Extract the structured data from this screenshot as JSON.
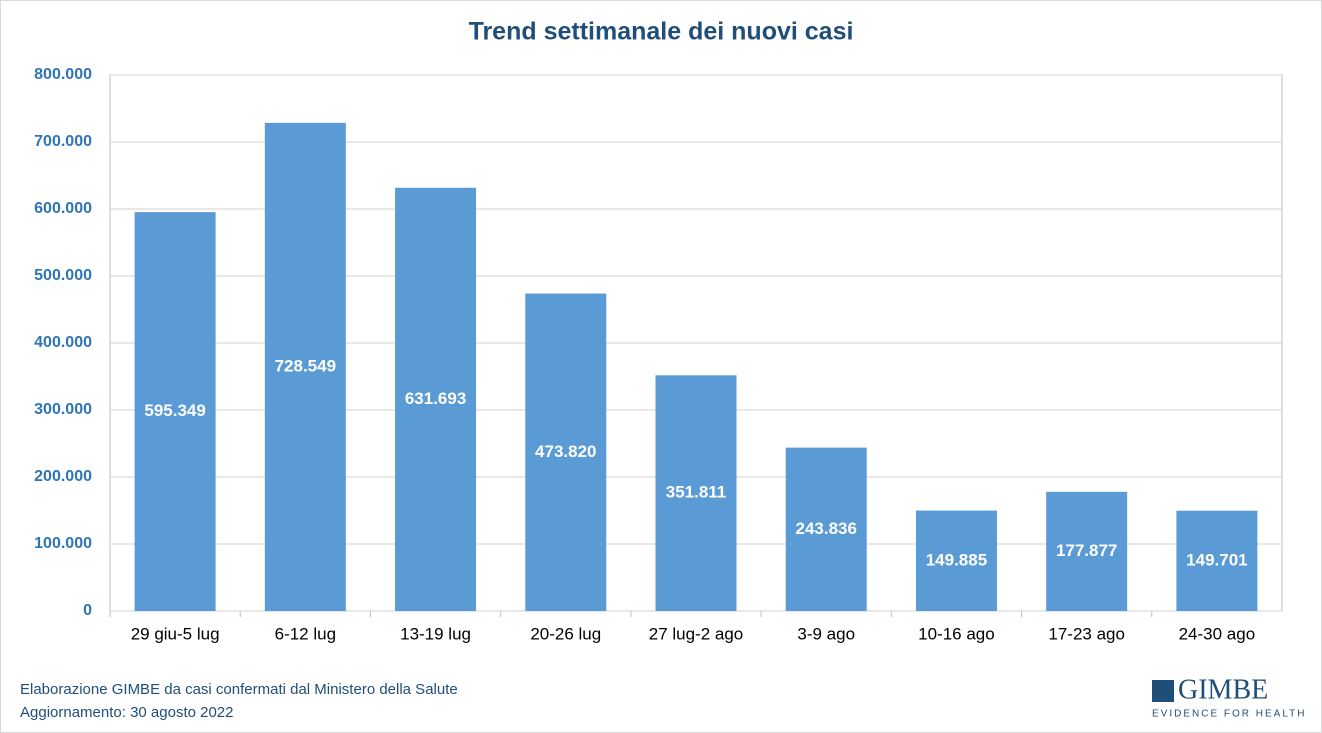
{
  "chart_data": {
    "type": "bar",
    "title": "Trend settimanale dei nuovi casi",
    "categories": [
      "29 giu-5 lug",
      "6-12 lug",
      "13-19 lug",
      "20-26 lug",
      "27 lug-2 ago",
      "3-9 ago",
      "10-16 ago",
      "17-23 ago",
      "24-30 ago"
    ],
    "values": [
      595349,
      728549,
      631693,
      473820,
      351811,
      243836,
      149885,
      177877,
      149701
    ],
    "value_labels": [
      "595.349",
      "728.549",
      "631.693",
      "473.820",
      "351.811",
      "243.836",
      "149.885",
      "177.877",
      "149.701"
    ],
    "color": "#5b9bd5",
    "ylim": [
      0,
      800000
    ],
    "yticks": [
      0,
      {
        "value": 100000,
        "label": "100.000"
      },
      {
        "value": 200000,
        "label": "200.000"
      },
      {
        "value": 300000,
        "label": "300.000"
      },
      {
        "value": 400000,
        "label": "400.000"
      },
      {
        "value": 500000,
        "label": "500.000"
      },
      {
        "value": 600000,
        "label": "600.000"
      },
      {
        "value": 700000,
        "label": "700.000"
      },
      {
        "value": 800000,
        "label": "800.000"
      }
    ],
    "grid": true
  },
  "footer": {
    "source": "Elaborazione GIMBE da casi confermati dal Ministero della Salute",
    "updated": "Aggiornamento:  30 agosto 2022"
  },
  "logo": {
    "name": "GIMBE",
    "tagline": "EVIDENCE FOR HEALTH"
  }
}
